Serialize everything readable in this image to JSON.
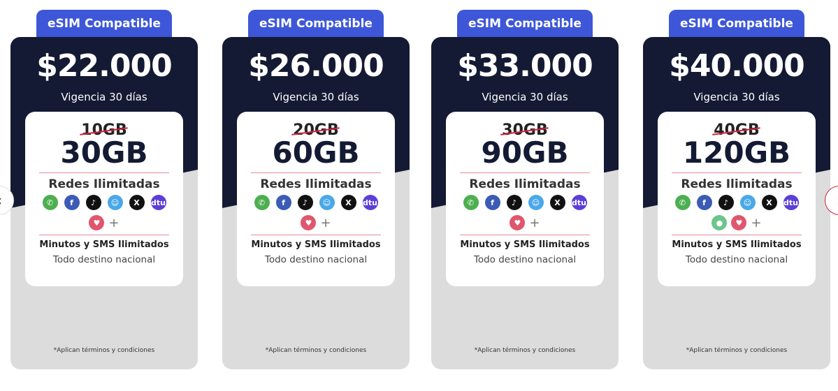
{
  "plans": [
    {
      "badge": "eSIM Compatible",
      "price": "$22.000",
      "validity": "Vigencia 30 días",
      "old_data": "10GB",
      "new_data": "30GB",
      "networks_label": "Redes Ilimitadas",
      "extra_icons": [
        "tinder"
      ],
      "minutes": "Minutos y SMS Ilimitados",
      "destination": "Todo destino nacional",
      "terms": "*Aplican términos y condiciones"
    },
    {
      "badge": "eSIM Compatible",
      "price": "$26.000",
      "validity": "Vigencia 30 días",
      "old_data": "20GB",
      "new_data": "60GB",
      "networks_label": "Redes Ilimitadas",
      "extra_icons": [
        "tinder"
      ],
      "minutes": "Minutos y SMS Ilimitados",
      "destination": "Todo destino nacional",
      "terms": "*Aplican términos y condiciones"
    },
    {
      "badge": "eSIM Compatible",
      "price": "$33.000",
      "validity": "Vigencia 30 días",
      "old_data": "30GB",
      "new_data": "90GB",
      "networks_label": "Redes Ilimitadas",
      "extra_icons": [
        "tinder"
      ],
      "minutes": "Minutos y SMS Ilimitados",
      "destination": "Todo destino nacional",
      "terms": "*Aplican términos y condiciones"
    },
    {
      "badge": "eSIM Compatible",
      "price": "$40.000",
      "validity": "Vigencia 30 días",
      "old_data": "40GB",
      "new_data": "120GB",
      "networks_label": "Redes Ilimitadas",
      "extra_icons": [
        "maps",
        "tinder"
      ],
      "minutes": "Minutos y SMS Ilimitados",
      "destination": "Todo destino nacional",
      "terms": "*Aplican términos y condiciones"
    }
  ],
  "social_icons": [
    {
      "name": "whatsapp",
      "glyph": "✆",
      "color": "#4caf50"
    },
    {
      "name": "facebook",
      "glyph": "f",
      "color": "#3b5bb5"
    },
    {
      "name": "tiktok",
      "glyph": "♪",
      "color": "#111111"
    },
    {
      "name": "waze",
      "glyph": "☺",
      "color": "#4aa8e8"
    },
    {
      "name": "x",
      "glyph": "X",
      "color": "#111111"
    },
    {
      "name": "dtu",
      "glyph": "dtu",
      "color": "#5b3fd6"
    }
  ],
  "extra_icon_styles": {
    "tinder": {
      "glyph": "♥",
      "color": "#e0566d"
    },
    "maps": {
      "glyph": "●",
      "color": "#6cc58a"
    }
  },
  "plus": "+",
  "nav": {
    "prev": "‹",
    "next": "›"
  },
  "colors": {
    "badge": "#3d57d8",
    "dark": "#141a33",
    "strike": "#d0213b"
  }
}
